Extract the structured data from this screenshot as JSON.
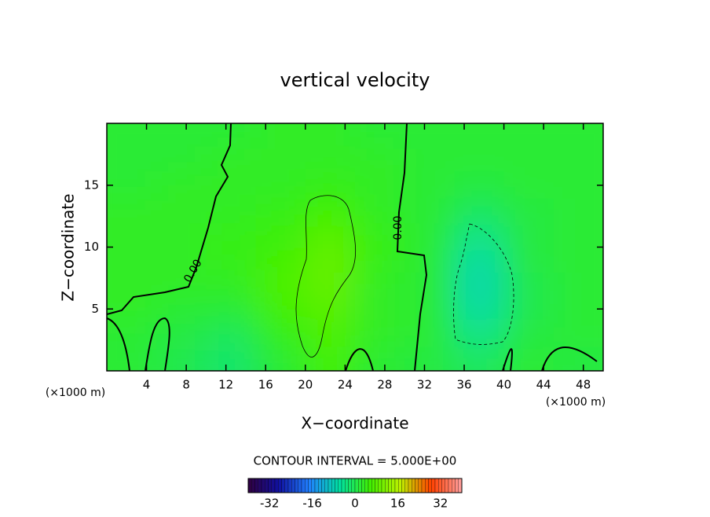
{
  "chart_data": {
    "type": "contour",
    "title": "vertical velocity",
    "x_label": "X−coordinate",
    "y_label": "Z−coordinate",
    "x_unit": "(×1000 m)",
    "x_unit_right": "(×1000 m)",
    "contour_note": "CONTOUR INTERVAL = 5.000E+00",
    "contour_labels": [
      "0.00",
      "0.00"
    ],
    "xlim": [
      0,
      50
    ],
    "xticks": [
      4,
      8,
      12,
      16,
      20,
      24,
      28,
      32,
      36,
      40,
      44,
      48
    ],
    "ylim": [
      0,
      20
    ],
    "yticks": [
      5,
      10,
      15
    ],
    "x": [
      2.5,
      7.5,
      12.5,
      17.5,
      22.5,
      27.5,
      32.5,
      37.5,
      42.5,
      47.5
    ],
    "y": [
      1,
      3,
      5,
      7,
      9,
      11,
      13,
      15,
      17,
      19
    ],
    "z": [
      [
        2,
        0,
        -2,
        2,
        6,
        2,
        1,
        -1,
        2,
        1
      ],
      [
        2,
        1,
        -1,
        4,
        7,
        3,
        2,
        -4,
        1,
        2
      ],
      [
        3,
        2,
        2,
        6,
        8,
        3,
        2,
        -6,
        0,
        2
      ],
      [
        3,
        3,
        3,
        7,
        9,
        3,
        2,
        -7,
        0,
        2
      ],
      [
        3,
        3,
        4,
        6,
        9,
        4,
        2,
        -6,
        1,
        2
      ],
      [
        3,
        3,
        4,
        5,
        8,
        4,
        2,
        -4,
        1,
        2
      ],
      [
        3,
        3,
        3,
        4,
        6,
        3,
        2,
        -1,
        1,
        2
      ],
      [
        2,
        3,
        3,
        3,
        4,
        3,
        2,
        1,
        2,
        2
      ],
      [
        2,
        2,
        3,
        3,
        3,
        3,
        2,
        2,
        2,
        2
      ],
      [
        2,
        2,
        2,
        3,
        3,
        2,
        2,
        2,
        2,
        2
      ]
    ],
    "clim": [
      -40,
      40
    ],
    "cticks": [
      -32,
      -16,
      0,
      16,
      32
    ],
    "colormap": [
      "#300040",
      "#1010a0",
      "#2080ff",
      "#00e0a0",
      "#40f000",
      "#c0f000",
      "#ff4000",
      "#ffa0a0"
    ]
  }
}
